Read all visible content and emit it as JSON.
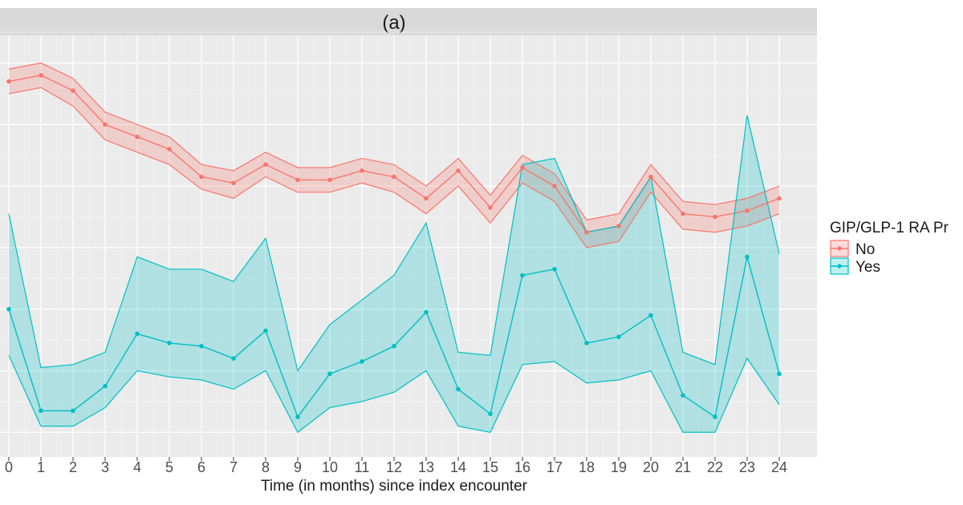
{
  "chart_data": {
    "type": "line",
    "facet_label": "(a)",
    "xlabel": "Time (in months) since index encounter",
    "ylabel": "",
    "x": [
      0,
      1,
      2,
      3,
      4,
      5,
      6,
      7,
      8,
      9,
      10,
      11,
      12,
      13,
      14,
      15,
      16,
      17,
      18,
      19,
      20,
      21,
      22,
      23,
      24
    ],
    "x_tick_labels": [
      "0",
      "1",
      "2",
      "3",
      "4",
      "5",
      "6",
      "7",
      "8",
      "9",
      "10",
      "11",
      "12",
      "13",
      "14",
      "15",
      "16",
      "17",
      "18",
      "19",
      "20",
      "21",
      "22",
      "23",
      "24"
    ],
    "xlim": [
      0,
      24
    ],
    "y_tick_labels": [],
    "grid": true,
    "legend": {
      "title": "GIP/GLP-1 RA Pr",
      "position": "right"
    },
    "series": [
      {
        "name": "No",
        "color": "#F8766D",
        "values": [
          11.4,
          11.6,
          11.1,
          10.0,
          9.6,
          9.2,
          8.3,
          8.1,
          8.7,
          8.2,
          8.2,
          8.5,
          8.3,
          7.6,
          8.5,
          7.3,
          8.6,
          8.0,
          6.5,
          6.7,
          8.3,
          7.1,
          7.0,
          7.2,
          7.6
        ],
        "lower": [
          11.0,
          11.2,
          10.6,
          9.5,
          9.1,
          8.7,
          7.9,
          7.6,
          8.3,
          7.8,
          7.8,
          8.1,
          7.8,
          7.1,
          8.0,
          6.8,
          8.1,
          7.5,
          6.0,
          6.2,
          7.8,
          6.6,
          6.5,
          6.7,
          7.1
        ],
        "upper": [
          11.8,
          12.0,
          11.5,
          10.4,
          10.0,
          9.6,
          8.7,
          8.5,
          9.1,
          8.6,
          8.6,
          8.9,
          8.7,
          8.0,
          8.9,
          7.7,
          9.0,
          8.4,
          6.9,
          7.1,
          8.7,
          7.5,
          7.4,
          7.6,
          8.0
        ]
      },
      {
        "name": "Yes",
        "color": "#00BFC4",
        "values": [
          4.0,
          0.7,
          0.7,
          1.5,
          3.2,
          2.9,
          2.8,
          2.4,
          3.3,
          0.5,
          1.9,
          2.3,
          2.8,
          3.9,
          1.4,
          0.6,
          5.1,
          5.3,
          2.9,
          3.1,
          3.8,
          1.2,
          0.5,
          5.7,
          1.9
        ],
        "lower": [
          2.5,
          0.2,
          0.2,
          0.8,
          2.0,
          1.8,
          1.7,
          1.4,
          2.0,
          0.0,
          0.8,
          1.0,
          1.3,
          2.0,
          0.2,
          0.0,
          2.2,
          2.3,
          1.6,
          1.7,
          2.0,
          0.0,
          0.0,
          2.4,
          0.9
        ],
        "upper": [
          7.1,
          2.1,
          2.2,
          2.6,
          5.7,
          5.3,
          5.3,
          4.9,
          6.3,
          2.0,
          3.5,
          4.3,
          5.1,
          6.8,
          2.6,
          2.5,
          8.7,
          8.9,
          6.5,
          6.7,
          8.3,
          2.6,
          2.2,
          10.3,
          5.8
        ]
      }
    ]
  }
}
